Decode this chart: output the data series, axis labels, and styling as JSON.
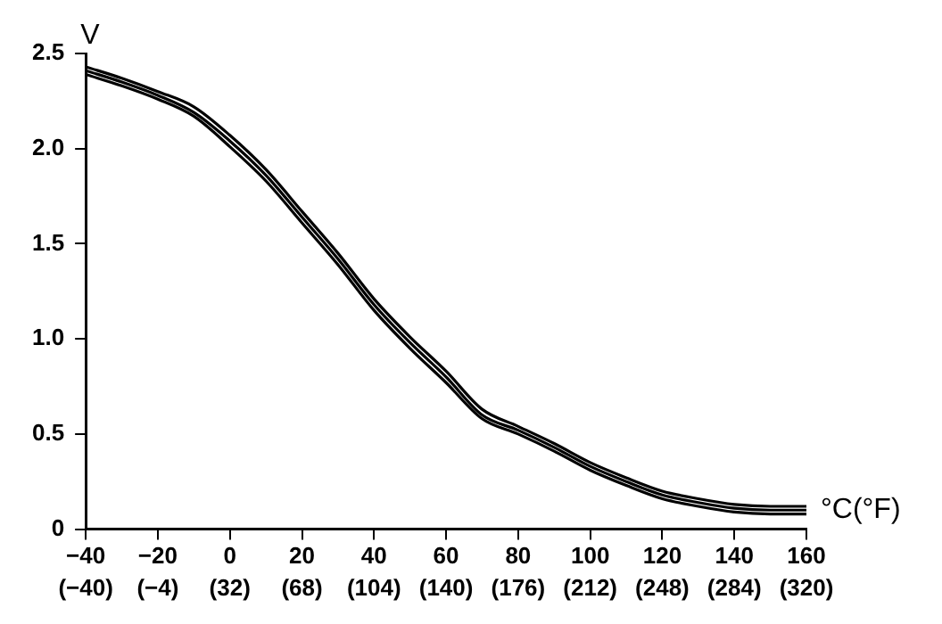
{
  "chart_data": {
    "type": "line",
    "xlabel": "°C(°F)",
    "ylabel": "V",
    "x": [
      -40,
      -30,
      -20,
      -10,
      0,
      10,
      20,
      30,
      40,
      50,
      60,
      70,
      80,
      90,
      100,
      110,
      120,
      130,
      140,
      150,
      160
    ],
    "series": [
      {
        "color": "#000000",
        "values": [
          2.43,
          2.37,
          2.3,
          2.22,
          2.07,
          1.89,
          1.67,
          1.45,
          1.21,
          1.01,
          0.83,
          0.63,
          0.54,
          0.45,
          0.35,
          0.27,
          0.2,
          0.16,
          0.13,
          0.12,
          0.12
        ]
      },
      {
        "color": "#000000",
        "values": [
          2.41,
          2.35,
          2.28,
          2.19,
          2.04,
          1.86,
          1.64,
          1.42,
          1.18,
          0.98,
          0.8,
          0.6,
          0.52,
          0.43,
          0.33,
          0.25,
          0.18,
          0.14,
          0.11,
          0.1,
          0.1
        ]
      },
      {
        "color": "#000000",
        "values": [
          2.39,
          2.33,
          2.26,
          2.17,
          2.01,
          1.83,
          1.61,
          1.39,
          1.15,
          0.95,
          0.77,
          0.58,
          0.5,
          0.41,
          0.31,
          0.23,
          0.16,
          0.12,
          0.09,
          0.08,
          0.08
        ]
      }
    ],
    "xlim": [
      -40,
      160
    ],
    "xticks": [
      {
        "value": -40,
        "label": "−40"
      },
      {
        "value": -20,
        "label": "−20"
      },
      0,
      20,
      40,
      60,
      80,
      100,
      120,
      140,
      160
    ],
    "x2lim": [
      -40,
      320
    ],
    "x2ticks": [
      {
        "value": -40,
        "label": "(−40)"
      },
      {
        "value": -4,
        "label": "(−4)"
      },
      {
        "value": 32,
        "label": "(32)"
      },
      {
        "value": 68,
        "label": "(68)"
      },
      {
        "value": 104,
        "label": "(104)"
      },
      {
        "value": 140,
        "label": "(140)"
      },
      {
        "value": 176,
        "label": "(176)"
      },
      {
        "value": 212,
        "label": "(212)"
      },
      {
        "value": 248,
        "label": "(248)"
      },
      {
        "value": 284,
        "label": "(284)"
      },
      {
        "value": 320,
        "label": "(320)"
      }
    ],
    "ylim": [
      0,
      2.5
    ],
    "yticks": [
      0,
      0.5,
      {
        "value": 1,
        "label": "1.0"
      },
      1.5,
      {
        "value": 2,
        "label": "2.0"
      },
      2.5
    ],
    "grid": false,
    "legend": false,
    "marker": "none",
    "line_style": "solid"
  }
}
